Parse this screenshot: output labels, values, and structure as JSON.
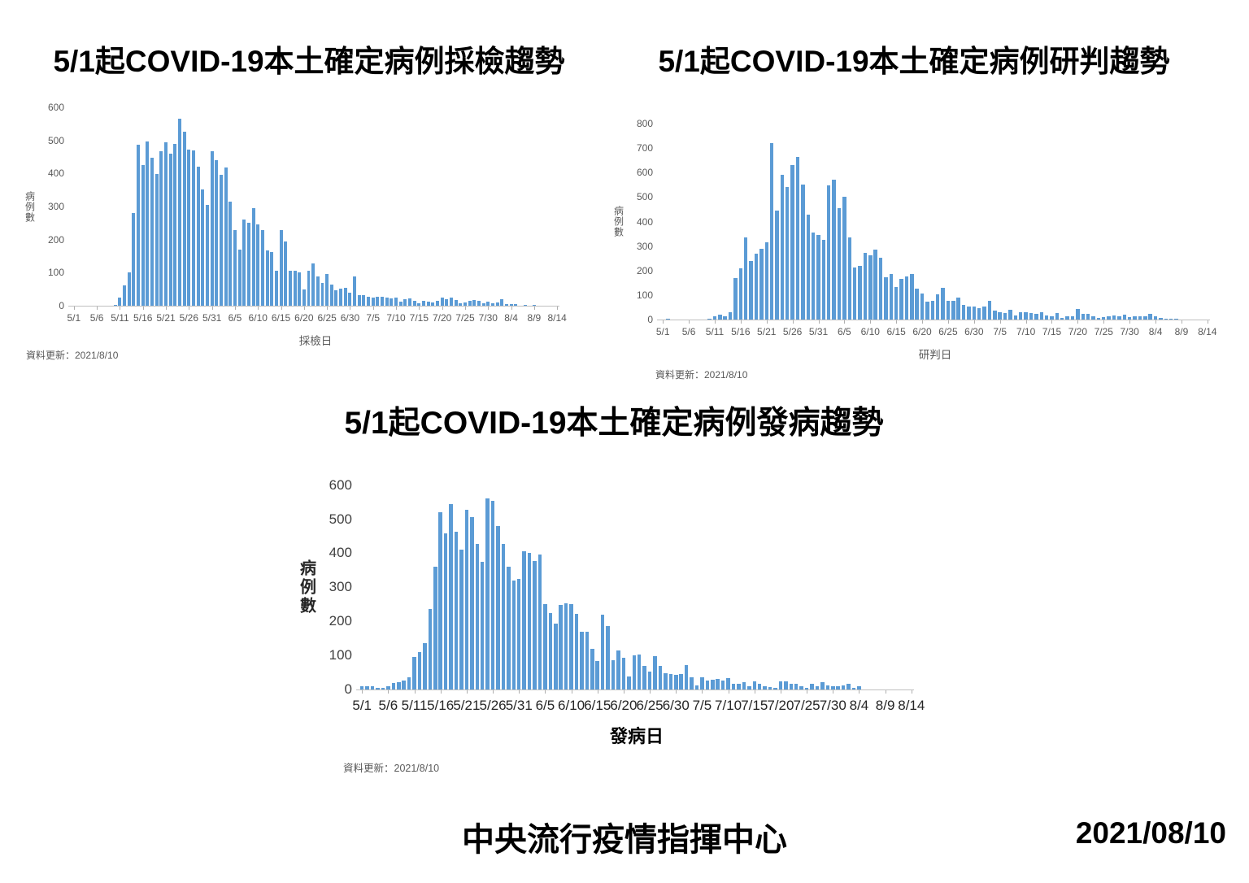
{
  "footer": {
    "org": "中央流行疫情指揮中心",
    "date": "2021/08/10"
  },
  "colors": {
    "bar": "#5B9BD5",
    "axis": "#BFBFBF",
    "tick_text": "#595959"
  },
  "chart_data": [
    {
      "type": "bar",
      "title": "5/1起COVID-19本土確定病例採檢趨勢",
      "xlabel": "採檢日",
      "ylabel": "病例數",
      "update_note": "資料更新：2021/8/10",
      "ylim": [
        0,
        600
      ],
      "y_tick_labels": [
        "0",
        "100",
        "200",
        "300",
        "400",
        "500",
        "600"
      ],
      "x_tick_labels": [
        "5/1",
        "5/6",
        "5/11",
        "5/16",
        "5/21",
        "5/26",
        "5/31",
        "6/5",
        "6/10",
        "6/15",
        "6/20",
        "6/25",
        "6/30",
        "7/5",
        "7/10",
        "7/15",
        "7/20",
        "7/25",
        "7/30",
        "8/4",
        "8/9",
        "8/14"
      ],
      "bar_color": "#5B9BD5",
      "dates": [
        "5/1",
        "5/2",
        "5/3",
        "5/4",
        "5/5",
        "5/6",
        "5/7",
        "5/8",
        "5/9",
        "5/10",
        "5/11",
        "5/12",
        "5/13",
        "5/14",
        "5/15",
        "5/16",
        "5/17",
        "5/18",
        "5/19",
        "5/20",
        "5/21",
        "5/22",
        "5/23",
        "5/24",
        "5/25",
        "5/26",
        "5/27",
        "5/28",
        "5/29",
        "5/30",
        "5/31",
        "6/1",
        "6/2",
        "6/3",
        "6/4",
        "6/5",
        "6/6",
        "6/7",
        "6/8",
        "6/9",
        "6/10",
        "6/11",
        "6/12",
        "6/13",
        "6/14",
        "6/15",
        "6/16",
        "6/17",
        "6/18",
        "6/19",
        "6/20",
        "6/21",
        "6/22",
        "6/23",
        "6/24",
        "6/25",
        "6/26",
        "6/27",
        "6/28",
        "6/29",
        "6/30",
        "7/1",
        "7/2",
        "7/3",
        "7/4",
        "7/5",
        "7/6",
        "7/7",
        "7/8",
        "7/9",
        "7/10",
        "7/11",
        "7/12",
        "7/13",
        "7/14",
        "7/15",
        "7/16",
        "7/17",
        "7/18",
        "7/19",
        "7/20",
        "7/21",
        "7/22",
        "7/23",
        "7/24",
        "7/25",
        "7/26",
        "7/27",
        "7/28",
        "7/29",
        "7/30",
        "7/31",
        "8/1",
        "8/2",
        "8/3",
        "8/4",
        "8/5",
        "8/6",
        "8/7",
        "8/8",
        "8/9",
        "8/10",
        "8/11",
        "8/12",
        "8/13",
        "8/14"
      ],
      "values": [
        0,
        0,
        0,
        0,
        0,
        0,
        0,
        0,
        0,
        2,
        25,
        62,
        100,
        280,
        488,
        425,
        497,
        448,
        398,
        468,
        495,
        460,
        490,
        565,
        527,
        472,
        470,
        420,
        353,
        305,
        467,
        440,
        395,
        418,
        315,
        230,
        170,
        262,
        250,
        295,
        247,
        230,
        168,
        163,
        105,
        228,
        195,
        107,
        105,
        100,
        50,
        105,
        128,
        90,
        68,
        95,
        65,
        48,
        53,
        55,
        40,
        90,
        32,
        33,
        28,
        25,
        28,
        28,
        25,
        22,
        25,
        12,
        20,
        22,
        15,
        8,
        15,
        12,
        10,
        15,
        25,
        20,
        25,
        18,
        8,
        10,
        15,
        18,
        15,
        8,
        12,
        8,
        10,
        20,
        5,
        5,
        5,
        0,
        3,
        0,
        2,
        0,
        0,
        0,
        0,
        0
      ]
    },
    {
      "type": "bar",
      "title": "5/1起COVID-19本土確定病例研判趨勢",
      "xlabel": "研判日",
      "ylabel": "病例數",
      "update_note": "資料更新：2021/8/10",
      "ylim": [
        0,
        800
      ],
      "y_tick_labels": [
        "0",
        "100",
        "200",
        "300",
        "400",
        "500",
        "600",
        "700",
        "800"
      ],
      "x_tick_labels": [
        "5/1",
        "5/6",
        "5/11",
        "5/16",
        "5/21",
        "5/26",
        "5/31",
        "6/5",
        "6/10",
        "6/15",
        "6/20",
        "6/25",
        "6/30",
        "7/5",
        "7/10",
        "7/15",
        "7/20",
        "7/25",
        "7/30",
        "8/4",
        "8/9",
        "8/14"
      ],
      "bar_color": "#5B9BD5",
      "dates": [
        "5/1",
        "5/2",
        "5/3",
        "5/4",
        "5/5",
        "5/6",
        "5/7",
        "5/8",
        "5/9",
        "5/10",
        "5/11",
        "5/12",
        "5/13",
        "5/14",
        "5/15",
        "5/16",
        "5/17",
        "5/18",
        "5/19",
        "5/20",
        "5/21",
        "5/22",
        "5/23",
        "5/24",
        "5/25",
        "5/26",
        "5/27",
        "5/28",
        "5/29",
        "5/30",
        "5/31",
        "6/1",
        "6/2",
        "6/3",
        "6/4",
        "6/5",
        "6/6",
        "6/7",
        "6/8",
        "6/9",
        "6/10",
        "6/11",
        "6/12",
        "6/13",
        "6/14",
        "6/15",
        "6/16",
        "6/17",
        "6/18",
        "6/19",
        "6/20",
        "6/21",
        "6/22",
        "6/23",
        "6/24",
        "6/25",
        "6/26",
        "6/27",
        "6/28",
        "6/29",
        "6/30",
        "7/1",
        "7/2",
        "7/3",
        "7/4",
        "7/5",
        "7/6",
        "7/7",
        "7/8",
        "7/9",
        "7/10",
        "7/11",
        "7/12",
        "7/13",
        "7/14",
        "7/15",
        "7/16",
        "7/17",
        "7/18",
        "7/19",
        "7/20",
        "7/21",
        "7/22",
        "7/23",
        "7/24",
        "7/25",
        "7/26",
        "7/27",
        "7/28",
        "7/29",
        "7/30",
        "7/31",
        "8/1",
        "8/2",
        "8/3",
        "8/4",
        "8/5",
        "8/6",
        "8/7",
        "8/8",
        "8/9",
        "8/10",
        "8/11",
        "8/12",
        "8/13",
        "8/14"
      ],
      "values": [
        0,
        5,
        0,
        0,
        0,
        0,
        0,
        0,
        2,
        5,
        15,
        20,
        15,
        30,
        170,
        210,
        335,
        240,
        268,
        288,
        315,
        720,
        445,
        590,
        540,
        630,
        665,
        550,
        427,
        355,
        347,
        327,
        548,
        572,
        455,
        503,
        335,
        214,
        220,
        274,
        263,
        286,
        251,
        174,
        185,
        132,
        167,
        175,
        187,
        128,
        107,
        75,
        78,
        104,
        129,
        76,
        78,
        89,
        60,
        54,
        55,
        47,
        55,
        76,
        37,
        29,
        27,
        39,
        18,
        29,
        31,
        28,
        23,
        29,
        18,
        15,
        27,
        8,
        15,
        12,
        45,
        25,
        25,
        15,
        8,
        10,
        15,
        18,
        15,
        21,
        10,
        12,
        12,
        15,
        25,
        12,
        8,
        5,
        4,
        3,
        2,
        0,
        0,
        0,
        0,
        0
      ]
    },
    {
      "type": "bar",
      "title": "5/1起COVID-19本土確定病例發病趨勢",
      "xlabel": "發病日",
      "ylabel": "病例數",
      "update_note": "資料更新：2021/8/10",
      "ylim": [
        0,
        600
      ],
      "y_tick_labels": [
        "0",
        "100",
        "200",
        "300",
        "400",
        "500",
        "600"
      ],
      "x_tick_labels": [
        "5/1",
        "5/6",
        "5/11",
        "5/16",
        "5/21",
        "5/26",
        "5/31",
        "6/5",
        "6/10",
        "6/15",
        "6/20",
        "6/25",
        "6/30",
        "7/5",
        "7/10",
        "7/15",
        "7/20",
        "7/25",
        "7/30",
        "8/4",
        "8/9",
        "8/14"
      ],
      "bar_color": "#5B9BD5",
      "dates": [
        "5/1",
        "5/2",
        "5/3",
        "5/4",
        "5/5",
        "5/6",
        "5/7",
        "5/8",
        "5/9",
        "5/10",
        "5/11",
        "5/12",
        "5/13",
        "5/14",
        "5/15",
        "5/16",
        "5/17",
        "5/18",
        "5/19",
        "5/20",
        "5/21",
        "5/22",
        "5/23",
        "5/24",
        "5/25",
        "5/26",
        "5/27",
        "5/28",
        "5/29",
        "5/30",
        "5/31",
        "6/1",
        "6/2",
        "6/3",
        "6/4",
        "6/5",
        "6/6",
        "6/7",
        "6/8",
        "6/9",
        "6/10",
        "6/11",
        "6/12",
        "6/13",
        "6/14",
        "6/15",
        "6/16",
        "6/17",
        "6/18",
        "6/19",
        "6/20",
        "6/21",
        "6/22",
        "6/23",
        "6/24",
        "6/25",
        "6/26",
        "6/27",
        "6/28",
        "6/29",
        "6/30",
        "7/1",
        "7/2",
        "7/3",
        "7/4",
        "7/5",
        "7/6",
        "7/7",
        "7/8",
        "7/9",
        "7/10",
        "7/11",
        "7/12",
        "7/13",
        "7/14",
        "7/15",
        "7/16",
        "7/17",
        "7/18",
        "7/19",
        "7/20",
        "7/21",
        "7/22",
        "7/23",
        "7/24",
        "7/25",
        "7/26",
        "7/27",
        "7/28",
        "7/29",
        "7/30",
        "7/31",
        "8/1",
        "8/2",
        "8/3",
        "8/4",
        "8/5",
        "8/6",
        "8/7",
        "8/8",
        "8/9",
        "8/10",
        "8/11",
        "8/12",
        "8/13",
        "8/14"
      ],
      "values": [
        10,
        8,
        10,
        5,
        3,
        10,
        18,
        20,
        25,
        35,
        95,
        110,
        135,
        235,
        360,
        520,
        458,
        545,
        463,
        410,
        528,
        505,
        428,
        375,
        560,
        553,
        480,
        428,
        360,
        320,
        325,
        405,
        400,
        378,
        395,
        250,
        225,
        193,
        248,
        253,
        250,
        222,
        169,
        169,
        120,
        82,
        220,
        185,
        85,
        115,
        93,
        37,
        100,
        101,
        69,
        52,
        97,
        69,
        48,
        45,
        42,
        45,
        72,
        35,
        12,
        35,
        25,
        28,
        30,
        25,
        32,
        15,
        15,
        20,
        10,
        23,
        15,
        10,
        7,
        5,
        23,
        23,
        15,
        15,
        10,
        5,
        15,
        8,
        20,
        12,
        10,
        8,
        12,
        15,
        5,
        8,
        0,
        0,
        0,
        0,
        0,
        0,
        0,
        0,
        0,
        0
      ]
    }
  ]
}
